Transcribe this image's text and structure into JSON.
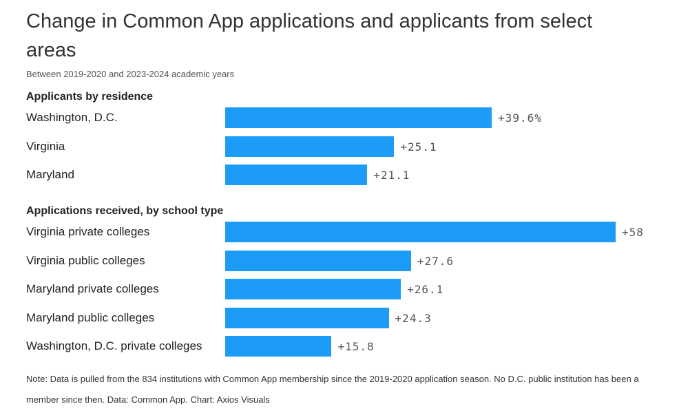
{
  "header": {
    "title": "Change in Common App applications and applicants from select areas",
    "subtitle": "Between 2019-2020 and 2023-2024 academic years"
  },
  "footer": {
    "note": "Note: Data is pulled from the 834 institutions with Common App membership since the 2019-2020 application season. No D.C. public institution has been a member since then. Data: Common App. Chart: Axios Visuals"
  },
  "colors": {
    "bar": "#1c9cf7"
  },
  "chart_data": {
    "type": "bar",
    "orientation": "horizontal",
    "title": "Change in Common App applications and applicants from select areas",
    "subtitle": "Between 2019-2020 and 2023-2024 academic years",
    "unit": "%",
    "xlim": [
      0,
      58
    ],
    "groups": [
      {
        "name": "Applicants by residence",
        "categories": [
          "Washington, D.C.",
          "Virginia",
          "Maryland"
        ],
        "values": [
          39.6,
          25.1,
          21.1
        ],
        "labels": [
          "+39.6%",
          "+25.1",
          "+21.1"
        ]
      },
      {
        "name": "Applications received, by school type",
        "categories": [
          "Virginia private colleges",
          "Virginia public colleges",
          "Maryland private colleges",
          "Maryland public colleges",
          "Washington, D.C. private colleges"
        ],
        "values": [
          58,
          27.6,
          26.1,
          24.3,
          15.8
        ],
        "labels": [
          "+58",
          "+27.6",
          "+26.1",
          "+24.3",
          "+15.8"
        ]
      }
    ]
  }
}
